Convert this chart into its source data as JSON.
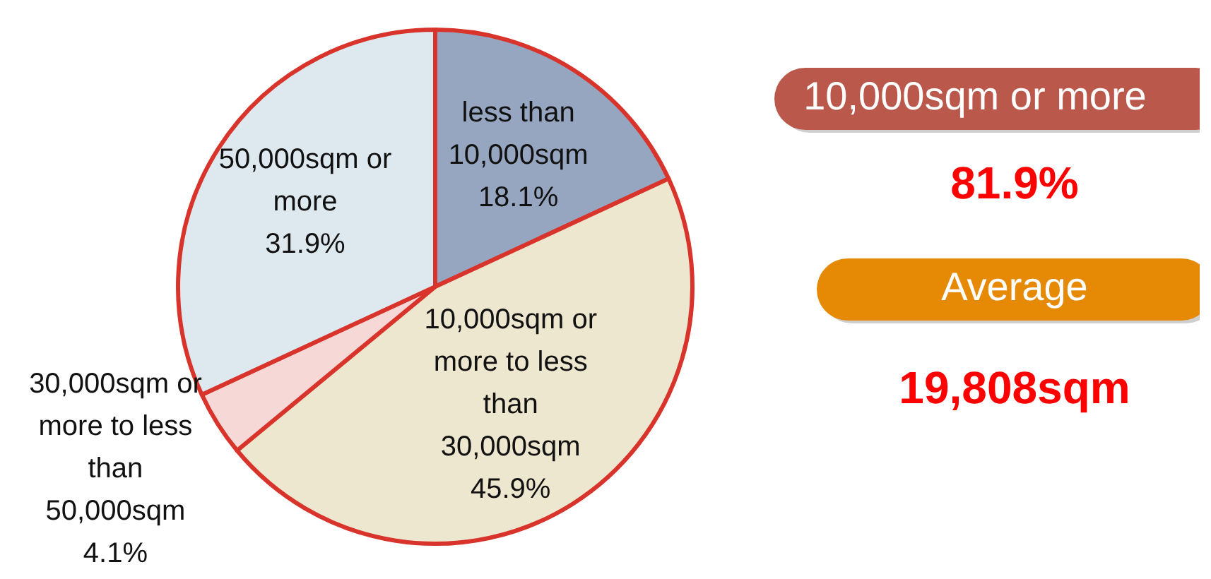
{
  "chart_data": {
    "type": "pie",
    "categories": [
      "less than 10,000sqm",
      "10,000sqm or more to less than 30,000sqm",
      "30,000sqm or more to less than 50,000sqm",
      "50,000sqm or more"
    ],
    "values": [
      18.1,
      45.9,
      4.1,
      31.9
    ],
    "colors": [
      "#96a6c0",
      "#eee7cf",
      "#f6d8d6",
      "#dde9ef"
    ],
    "value_labels": [
      "18.1%",
      "45.9%",
      "4.1%",
      "31.9%"
    ],
    "annotations": [
      "10,000sqm or more",
      "81.9%",
      "Average",
      "19,808sqm"
    ]
  }
}
